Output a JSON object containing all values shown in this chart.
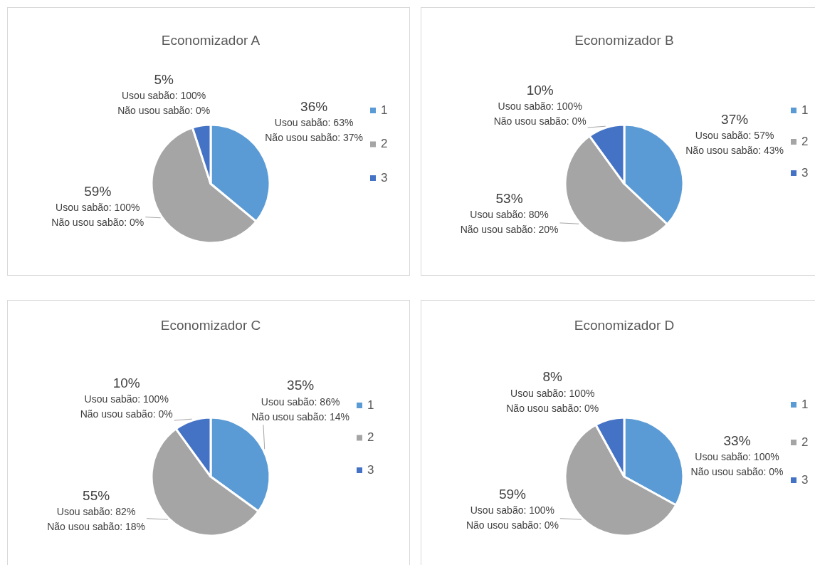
{
  "chart_data": [
    {
      "type": "pie",
      "title": "Economizador A",
      "categories": [
        "1",
        "2",
        "3"
      ],
      "values": [
        36,
        59,
        5
      ],
      "colors": [
        "#5b9bd5",
        "#a5a5a5",
        "#4472c4"
      ],
      "value_labels": [
        "36%\nUsou sabão: 63%\nNão usou sabão: 37%",
        "59%\nUsou sabão: 100%\nNão usou sabão: 0%",
        "5%\nUsou sabão: 100%\nNão usou sabão: 0%"
      ],
      "legend": "right"
    },
    {
      "type": "pie",
      "title": "Economizador B",
      "categories": [
        "1",
        "2",
        "3"
      ],
      "values": [
        37,
        53,
        10
      ],
      "colors": [
        "#5b9bd5",
        "#a5a5a5",
        "#4472c4"
      ],
      "value_labels": [
        "37%\nUsou sabão: 57%\nNão usou sabão: 43%",
        "53%\nUsou sabão: 80%\nNão usou sabão: 20%",
        "10%\nUsou sabão: 100%\nNão usou sabão: 0%"
      ],
      "legend": "right"
    },
    {
      "type": "pie",
      "title": "Economizador C",
      "categories": [
        "1",
        "2",
        "3"
      ],
      "values": [
        35,
        55,
        10
      ],
      "colors": [
        "#5b9bd5",
        "#a5a5a5",
        "#4472c4"
      ],
      "value_labels": [
        "35%\nUsou sabão: 86%\nNão usou sabão: 14%",
        "55%\nUsou sabão: 82%\nNão usou sabão: 18%",
        "10%\nUsou sabão: 100%\nNão usou sabão: 0%"
      ],
      "legend": "right"
    },
    {
      "type": "pie",
      "title": "Economizador D",
      "categories": [
        "1",
        "2",
        "3"
      ],
      "values": [
        33,
        59,
        8
      ],
      "colors": [
        "#5b9bd5",
        "#a5a5a5",
        "#4472c4"
      ],
      "value_labels": [
        "33%\nUsou sabão: 100%\nNão usou sabão: 0%",
        "59%\nUsou sabão: 100%\nNão usou sabão: 0%",
        "8%\nUsou sabão: 100%\nNão usou sabão: 0%"
      ],
      "legend": "right"
    }
  ]
}
